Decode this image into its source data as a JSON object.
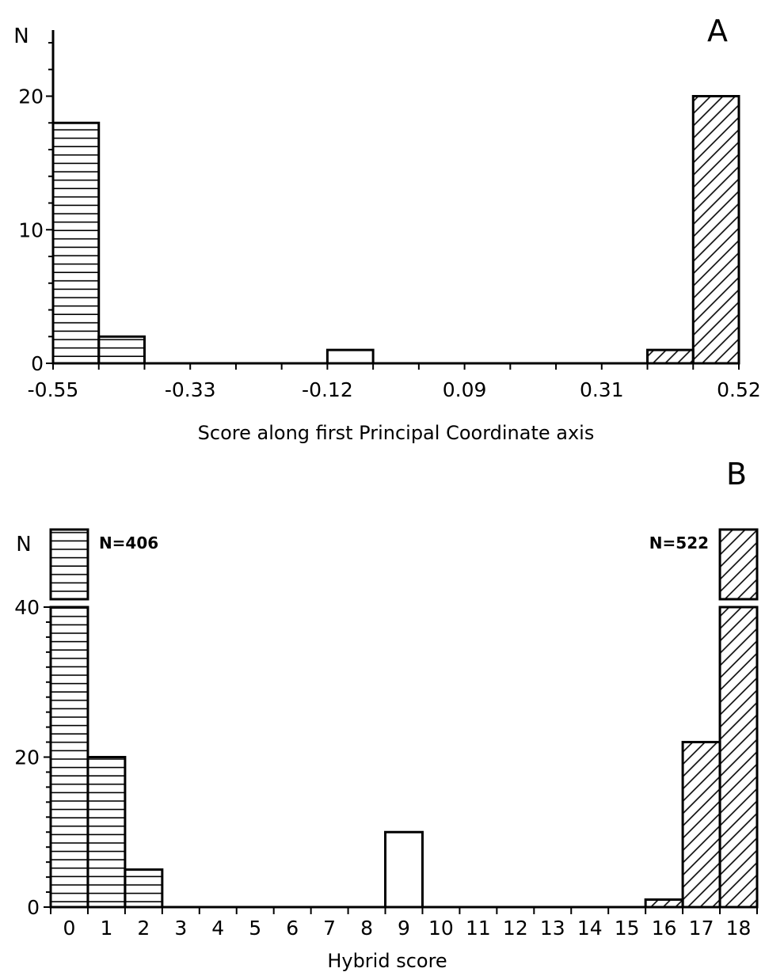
{
  "chart_data": [
    {
      "panel": "A",
      "type": "bar",
      "ylabel": "N",
      "xlabel": "Score along first Principal Coordinate axis",
      "x_tick_labels": [
        "-0.55",
        "-0.33",
        "-0.12",
        "0.09",
        "0.31",
        "0.52"
      ],
      "y_tick_labels": [
        "0",
        "10",
        "20"
      ],
      "ylim": [
        0,
        24
      ],
      "bin_range": [
        0,
        15
      ],
      "bars": [
        {
          "bin": 0,
          "value": 18,
          "pattern": "horizontal"
        },
        {
          "bin": 1,
          "value": 2,
          "pattern": "horizontal"
        },
        {
          "bin": 6,
          "value": 1,
          "pattern": "none"
        },
        {
          "bin": 13,
          "value": 1,
          "pattern": "diagonal"
        },
        {
          "bin": 14,
          "value": 20,
          "pattern": "diagonal"
        }
      ]
    },
    {
      "panel": "B",
      "type": "bar",
      "ylabel": "N",
      "xlabel": "Hybrid score",
      "categories": [
        "0",
        "1",
        "2",
        "3",
        "4",
        "5",
        "6",
        "7",
        "8",
        "9",
        "10",
        "11",
        "12",
        "13",
        "14",
        "15",
        "16",
        "17",
        "18"
      ],
      "y_tick_labels": [
        "0",
        "20",
        "40"
      ],
      "ylim": [
        0,
        40
      ],
      "axis_break": true,
      "bars": [
        {
          "category": "0",
          "value": 406,
          "pattern": "horizontal",
          "label": "N=406"
        },
        {
          "category": "1",
          "value": 20,
          "pattern": "horizontal"
        },
        {
          "category": "2",
          "value": 5,
          "pattern": "horizontal"
        },
        {
          "category": "9",
          "value": 10,
          "pattern": "none"
        },
        {
          "category": "16",
          "value": 1,
          "pattern": "diagonal"
        },
        {
          "category": "17",
          "value": 22,
          "pattern": "diagonal"
        },
        {
          "category": "18",
          "value": 522,
          "pattern": "diagonal",
          "label": "N=522"
        }
      ]
    }
  ]
}
